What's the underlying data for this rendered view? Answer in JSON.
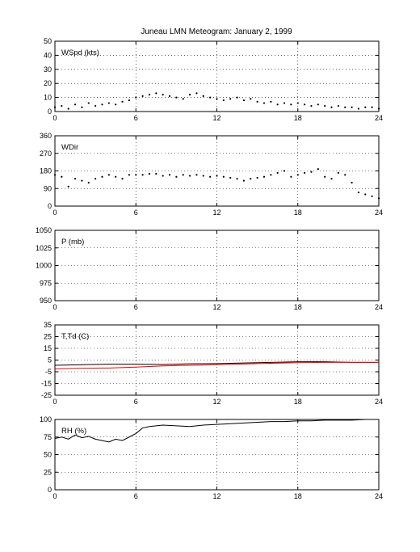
{
  "figure": {
    "title": "Juneau LMN Meteogram:   January  2, 1999"
  },
  "chart_data": [
    {
      "type": "scatter",
      "panel_label": "WSpd (kts)",
      "xlim": [
        0,
        24
      ],
      "ylim": [
        0,
        50
      ],
      "xticks": [
        0,
        6,
        12,
        18,
        24
      ],
      "yticks": [
        0,
        10,
        20,
        30,
        40,
        50
      ],
      "grid": true,
      "series": [
        {
          "color": "#000000",
          "points": [
            [
              0,
              3
            ],
            [
              0.5,
              4
            ],
            [
              1,
              2
            ],
            [
              1.5,
              5
            ],
            [
              2,
              3
            ],
            [
              2.5,
              6
            ],
            [
              3,
              4
            ],
            [
              3.5,
              5
            ],
            [
              4,
              6
            ],
            [
              4.5,
              5
            ],
            [
              5,
              7
            ],
            [
              5.5,
              8
            ],
            [
              6,
              10
            ],
            [
              6.5,
              11
            ],
            [
              7,
              12
            ],
            [
              7.5,
              13
            ],
            [
              8,
              12
            ],
            [
              8.5,
              11
            ],
            [
              9,
              10
            ],
            [
              9.5,
              9
            ],
            [
              10,
              12
            ],
            [
              10.5,
              13
            ],
            [
              11,
              11
            ],
            [
              11.5,
              10
            ],
            [
              12,
              9
            ],
            [
              12.5,
              8
            ],
            [
              13,
              9
            ],
            [
              13.5,
              10
            ],
            [
              14,
              8
            ],
            [
              14.5,
              9
            ],
            [
              15,
              7
            ],
            [
              15.5,
              6
            ],
            [
              16,
              7
            ],
            [
              16.5,
              5
            ],
            [
              17,
              6
            ],
            [
              17.5,
              5
            ],
            [
              18,
              6
            ],
            [
              18.5,
              5
            ],
            [
              19,
              4
            ],
            [
              19.5,
              5
            ],
            [
              20,
              4
            ],
            [
              20.5,
              3
            ],
            [
              21,
              4
            ],
            [
              21.5,
              3
            ],
            [
              22,
              3
            ],
            [
              22.5,
              2
            ],
            [
              23,
              3
            ],
            [
              23.5,
              3
            ],
            [
              24,
              2
            ]
          ]
        }
      ]
    },
    {
      "type": "scatter",
      "panel_label": "WDir",
      "xlim": [
        0,
        24
      ],
      "ylim": [
        0,
        360
      ],
      "xticks": [
        0,
        6,
        12,
        18,
        24
      ],
      "yticks": [
        0,
        90,
        180,
        270,
        360
      ],
      "grid": true,
      "series": [
        {
          "color": "#000000",
          "points": [
            [
              0,
              160
            ],
            [
              0.5,
              150
            ],
            [
              1,
              100
            ],
            [
              1.5,
              140
            ],
            [
              2,
              130
            ],
            [
              2.5,
              120
            ],
            [
              3,
              140
            ],
            [
              3.5,
              150
            ],
            [
              4,
              160
            ],
            [
              4.5,
              150
            ],
            [
              5,
              140
            ],
            [
              5.5,
              160
            ],
            [
              6,
              160
            ],
            [
              6.5,
              160
            ],
            [
              7,
              165
            ],
            [
              7.5,
              165
            ],
            [
              8,
              155
            ],
            [
              8.5,
              160
            ],
            [
              9,
              150
            ],
            [
              9.5,
              160
            ],
            [
              10,
              155
            ],
            [
              10.5,
              160
            ],
            [
              11,
              155
            ],
            [
              11.5,
              150
            ],
            [
              12,
              155
            ],
            [
              12.5,
              150
            ],
            [
              13,
              145
            ],
            [
              13.5,
              140
            ],
            [
              14,
              130
            ],
            [
              14.5,
              140
            ],
            [
              15,
              145
            ],
            [
              15.5,
              150
            ],
            [
              16,
              160
            ],
            [
              16.5,
              170
            ],
            [
              17,
              180
            ],
            [
              17.5,
              150
            ],
            [
              18,
              160
            ],
            [
              18.5,
              170
            ],
            [
              19,
              175
            ],
            [
              19.5,
              190
            ],
            [
              20,
              150
            ],
            [
              20.5,
              140
            ],
            [
              21,
              170
            ],
            [
              21.5,
              160
            ],
            [
              22,
              120
            ],
            [
              22.5,
              70
            ],
            [
              23,
              60
            ],
            [
              23.5,
              50
            ],
            [
              24,
              40
            ]
          ]
        }
      ]
    },
    {
      "type": "line",
      "panel_label": "P (mb)",
      "xlim": [
        0,
        24
      ],
      "ylim": [
        950,
        1050
      ],
      "xticks": [
        0,
        6,
        12,
        18,
        24
      ],
      "yticks": [
        950,
        975,
        1000,
        1025,
        1050
      ],
      "grid": true,
      "series": []
    },
    {
      "type": "line",
      "panel_label": "T,Td (C)",
      "xlim": [
        0,
        24
      ],
      "ylim": [
        -25,
        35
      ],
      "xticks": [
        0,
        6,
        12,
        18,
        24
      ],
      "yticks": [
        -25,
        -15,
        -5,
        5,
        15,
        25,
        35
      ],
      "grid": true,
      "series": [
        {
          "color": "#000000",
          "points": [
            [
              0,
              0.5
            ],
            [
              2,
              1
            ],
            [
              4,
              1.5
            ],
            [
              6,
              1.5
            ],
            [
              8,
              1.2
            ],
            [
              10,
              1.8
            ],
            [
              12,
              2
            ],
            [
              14,
              2.5
            ],
            [
              16,
              3
            ],
            [
              18,
              3.5
            ],
            [
              20,
              3.5
            ],
            [
              22,
              3
            ],
            [
              24,
              3
            ]
          ]
        },
        {
          "color": "#ff0000",
          "points": [
            [
              0,
              -2.5
            ],
            [
              2,
              -2
            ],
            [
              4,
              -1.8
            ],
            [
              6,
              -1
            ],
            [
              8,
              0
            ],
            [
              10,
              0.5
            ],
            [
              12,
              1
            ],
            [
              14,
              1.6
            ],
            [
              16,
              2.2
            ],
            [
              18,
              2.8
            ],
            [
              20,
              3
            ],
            [
              22,
              3
            ],
            [
              24,
              3
            ]
          ]
        }
      ]
    },
    {
      "type": "line",
      "panel_label": "RH (%)",
      "xlim": [
        0,
        24
      ],
      "ylim": [
        0,
        100
      ],
      "xticks": [
        0,
        6,
        12,
        18,
        24
      ],
      "yticks": [
        0,
        25,
        50,
        75,
        100
      ],
      "grid": true,
      "series": [
        {
          "color": "#000000",
          "points": [
            [
              0,
              73
            ],
            [
              0.5,
              75
            ],
            [
              1,
              72
            ],
            [
              1.5,
              78
            ],
            [
              2,
              74
            ],
            [
              2.5,
              76
            ],
            [
              3,
              72
            ],
            [
              3.5,
              70
            ],
            [
              4,
              68
            ],
            [
              4.5,
              72
            ],
            [
              5,
              70
            ],
            [
              5.5,
              75
            ],
            [
              6,
              80
            ],
            [
              6.5,
              88
            ],
            [
              7,
              90
            ],
            [
              8,
              92
            ],
            [
              9,
              91
            ],
            [
              10,
              90
            ],
            [
              11,
              92
            ],
            [
              12,
              93
            ],
            [
              13,
              94
            ],
            [
              14,
              95
            ],
            [
              15,
              96
            ],
            [
              16,
              97
            ],
            [
              17,
              97
            ],
            [
              18,
              98
            ],
            [
              19,
              98
            ],
            [
              20,
              99
            ],
            [
              21,
              99
            ],
            [
              22,
              99
            ],
            [
              23,
              100
            ],
            [
              24,
              100
            ]
          ]
        }
      ]
    }
  ]
}
